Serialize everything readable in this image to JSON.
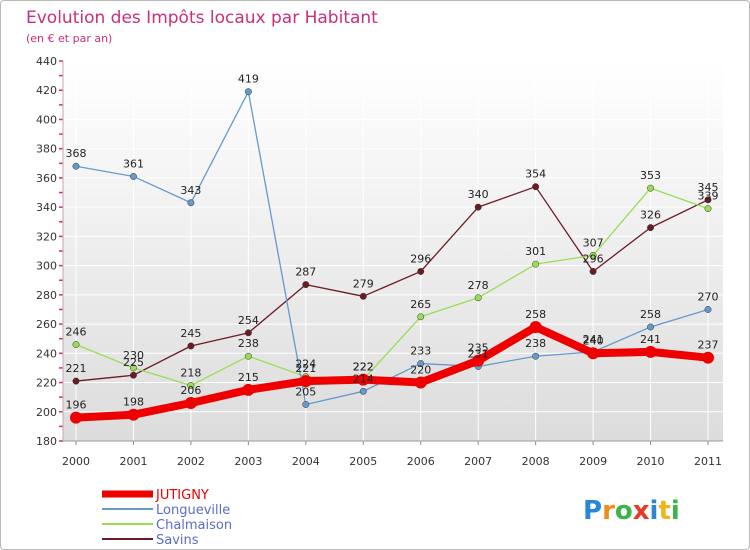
{
  "chart_data": {
    "type": "line",
    "title": "Evolution des Impôts locaux par Habitant",
    "subtitle": "(en € et par an)",
    "xlabel": "",
    "ylabel": "",
    "categories": [
      "2000",
      "2001",
      "2002",
      "2003",
      "2004",
      "2005",
      "2006",
      "2007",
      "2008",
      "2009",
      "2010",
      "2011"
    ],
    "ylim": [
      180,
      440
    ],
    "y_ticks": [
      180,
      200,
      220,
      240,
      260,
      280,
      300,
      320,
      340,
      360,
      380,
      400,
      420,
      440
    ],
    "grid": true,
    "legend_position": "bottom-left",
    "series": [
      {
        "name": "Savins",
        "color": "#6b1b23",
        "values": [
          221,
          225,
          245,
          254,
          287,
          279,
          296,
          340,
          354,
          296,
          326,
          345
        ]
      },
      {
        "name": "Chalmaison",
        "color": "#99dd55",
        "values": [
          246,
          230,
          218,
          238,
          224,
          222,
          265,
          278,
          301,
          307,
          353,
          339
        ]
      },
      {
        "name": "Longueville",
        "color": "#6699cc",
        "values": [
          368,
          361,
          343,
          419,
          205,
          214,
          233,
          231,
          238,
          241,
          258,
          270
        ]
      },
      {
        "name": "JUTIGNY",
        "color": "#ee0000",
        "values": [
          196,
          198,
          206,
          215,
          221,
          222,
          220,
          235,
          258,
          240,
          241,
          237
        ]
      }
    ]
  },
  "logo": {
    "letters": [
      "P",
      "r",
      "o",
      "x",
      "i",
      "t",
      "i"
    ],
    "colors": [
      "#2a86d6",
      "#f08a1c",
      "#3bb548",
      "#e83a2a",
      "#2a86d6",
      "#f0b41c",
      "#3bb548"
    ]
  }
}
